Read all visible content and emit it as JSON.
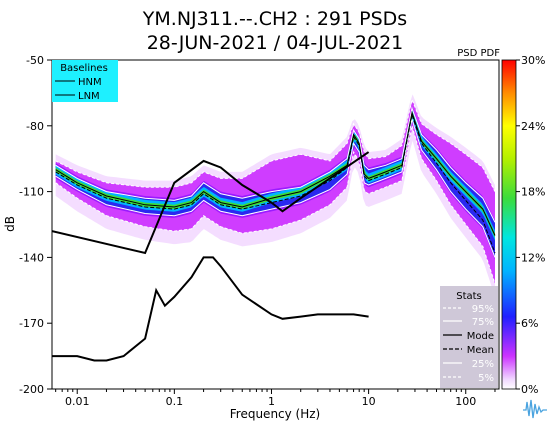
{
  "title_line1": "YM.NJ311.--.CH2 : 291 PSDs",
  "title_line2": "28-JUN-2021 / 04-JUL-2021",
  "colorbar_title": "PSD PDF",
  "colorbar_ticks": [
    "0%",
    "6%",
    "12%",
    "18%",
    "24%",
    "30%"
  ],
  "baselines": {
    "title": "Baselines",
    "items": [
      "HNM",
      "LNM"
    ]
  },
  "stats": {
    "title": "Stats",
    "items": [
      "95%",
      "75%",
      "Mode",
      "Mean",
      "25%",
      "5%"
    ]
  },
  "colors": {
    "baselines_bg": "#1ef0ff",
    "stats_bg": "#cfc8d8"
  },
  "chart_data": {
    "type": "line",
    "title": "YM.NJ311.--.CH2 : 291 PSDs",
    "subtitle": "28-JUN-2021 / 04-JUL-2021",
    "xlabel": "Frequency (Hz)",
    "ylabel": "dB",
    "xscale": "log",
    "xlim": [
      0.0055,
      220
    ],
    "ylim": [
      -200,
      -50
    ],
    "x_ticks": [
      0.01,
      0.1,
      1,
      10,
      100
    ],
    "x_tick_labels": [
      "0.01",
      "0.1",
      "1",
      "10",
      "100"
    ],
    "y_ticks": [
      -50,
      -80,
      -110,
      -140,
      -170,
      -200
    ],
    "y_tick_labels": [
      "-50",
      "-80",
      "-110",
      "-140",
      "-170",
      "-200"
    ],
    "series": [
      {
        "name": "HNM",
        "x": [
          0.0055,
          0.05,
          0.1,
          0.2,
          0.3,
          0.5,
          1.0,
          1.3,
          2.0,
          5.0,
          10.0
        ],
        "y": [
          -128,
          -138,
          -106,
          -96,
          -99,
          -107,
          -115,
          -119,
          -113,
          -101,
          -92
        ]
      },
      {
        "name": "LNM",
        "x": [
          0.0055,
          0.01,
          0.015,
          0.02,
          0.03,
          0.05,
          0.065,
          0.08,
          0.1,
          0.15,
          0.2,
          0.25,
          0.3,
          0.5,
          1.0,
          1.3,
          2.0,
          3.0,
          5.0,
          7.0,
          10.0
        ],
        "y": [
          -185,
          -185,
          -187,
          -187,
          -185,
          -177,
          -155,
          -162,
          -158,
          -149,
          -140,
          -140,
          -144,
          -157,
          -166,
          -168,
          -167,
          -166,
          -166,
          -166,
          -167
        ]
      },
      {
        "name": "Mode",
        "x": [
          0.006,
          0.01,
          0.02,
          0.05,
          0.1,
          0.15,
          0.2,
          0.3,
          0.5,
          1.0,
          2.0,
          4.0,
          6.0,
          7.0,
          8.0,
          9.0,
          10.0,
          15.0,
          22.0,
          28.0,
          35.0,
          50.0,
          70.0,
          100.0,
          150.0,
          200.0
        ],
        "y": [
          -100,
          -106,
          -112,
          -116,
          -117,
          -115,
          -110,
          -115,
          -117,
          -113,
          -110,
          -103,
          -98,
          -84,
          -88,
          -102,
          -104,
          -101,
          -98,
          -74,
          -87,
          -95,
          -103,
          -110,
          -118,
          -130
        ]
      },
      {
        "name": "Mean",
        "x": [
          0.006,
          0.01,
          0.02,
          0.05,
          0.1,
          0.15,
          0.2,
          0.3,
          0.5,
          1.0,
          2.0,
          4.0,
          6.0,
          7.0,
          8.0,
          9.0,
          10.0,
          15.0,
          22.0,
          28.0,
          35.0,
          50.0,
          70.0,
          100.0,
          150.0,
          200.0
        ],
        "y": [
          -101,
          -107,
          -113,
          -117,
          -118,
          -116,
          -111,
          -116,
          -118,
          -115,
          -112,
          -105,
          -99,
          -85,
          -89,
          -103,
          -105,
          -102,
          -99,
          -75,
          -88,
          -97,
          -106,
          -114,
          -123,
          -138
        ]
      },
      {
        "name": "95%",
        "x": [
          0.006,
          0.01,
          0.02,
          0.05,
          0.1,
          0.15,
          0.2,
          0.3,
          0.5,
          1.0,
          2.0,
          4.0,
          6.0,
          7.0,
          8.0,
          9.0,
          10.0,
          15.0,
          22.0,
          28.0,
          35.0,
          50.0,
          70.0,
          100.0,
          150.0,
          200.0
        ],
        "y": [
          -96,
          -101,
          -106,
          -108,
          -108,
          -106,
          -101,
          -104,
          -104,
          -96,
          -93,
          -96,
          -88,
          -79,
          -83,
          -92,
          -95,
          -94,
          -89,
          -68,
          -79,
          -84,
          -88,
          -93,
          -99,
          -110
        ]
      },
      {
        "name": "75%",
        "x": [
          0.006,
          0.01,
          0.02,
          0.05,
          0.1,
          0.15,
          0.2,
          0.3,
          0.5,
          1.0,
          2.0,
          4.0,
          6.0,
          7.0,
          8.0,
          9.0,
          10.0,
          15.0,
          22.0,
          28.0,
          35.0,
          50.0,
          70.0,
          100.0,
          150.0,
          200.0
        ],
        "y": [
          -98,
          -104,
          -110,
          -113,
          -114,
          -112,
          -106,
          -111,
          -113,
          -110,
          -108,
          -101,
          -95,
          -82,
          -86,
          -98,
          -100,
          -98,
          -95,
          -72,
          -84,
          -91,
          -99,
          -106,
          -113,
          -124
        ]
      },
      {
        "name": "25%",
        "x": [
          0.006,
          0.01,
          0.02,
          0.05,
          0.1,
          0.15,
          0.2,
          0.3,
          0.5,
          1.0,
          2.0,
          4.0,
          6.0,
          7.0,
          8.0,
          9.0,
          10.0,
          15.0,
          22.0,
          28.0,
          35.0,
          50.0,
          70.0,
          100.0,
          150.0,
          200.0
        ],
        "y": [
          -103,
          -109,
          -116,
          -120,
          -121,
          -119,
          -114,
          -119,
          -121,
          -118,
          -115,
          -109,
          -102,
          -88,
          -92,
          -106,
          -107,
          -104,
          -101,
          -77,
          -91,
          -100,
          -110,
          -118,
          -126,
          -140
        ]
      },
      {
        "name": "5%",
        "x": [
          0.006,
          0.01,
          0.02,
          0.05,
          0.1,
          0.15,
          0.2,
          0.3,
          0.5,
          1.0,
          2.0,
          4.0,
          6.0,
          7.0,
          8.0,
          9.0,
          10.0,
          15.0,
          22.0,
          28.0,
          35.0,
          50.0,
          70.0,
          100.0,
          150.0,
          200.0
        ],
        "y": [
          -106,
          -113,
          -121,
          -126,
          -128,
          -127,
          -121,
          -126,
          -129,
          -127,
          -123,
          -116,
          -108,
          -92,
          -96,
          -110,
          -111,
          -108,
          -105,
          -80,
          -95,
          -105,
          -116,
          -125,
          -135,
          -152
        ]
      }
    ]
  }
}
